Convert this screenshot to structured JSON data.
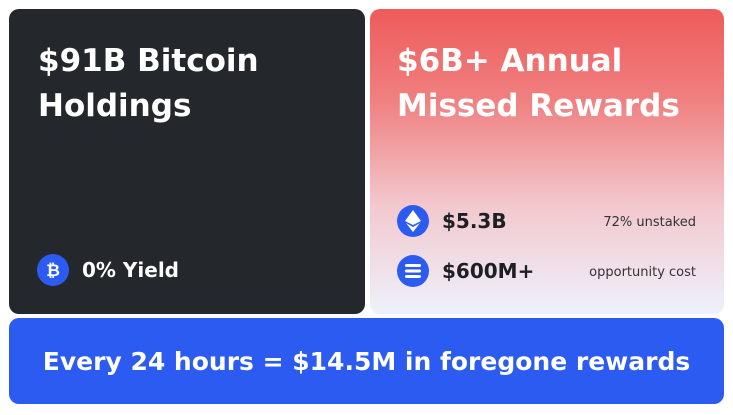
{
  "left_card": {
    "title_line1": "$91B Bitcoin",
    "title_line2": "Holdings",
    "stat": "0% Yield"
  },
  "right_card": {
    "title_line1": "$6B+ Annual",
    "title_line2": "Missed Rewards",
    "rows": [
      {
        "value": "$5.3B",
        "note": "72% unstaked"
      },
      {
        "value": "$600M+",
        "note": "opportunity cost"
      }
    ]
  },
  "banner": "Every 24 hours = $14.5M in foregone rewards"
}
